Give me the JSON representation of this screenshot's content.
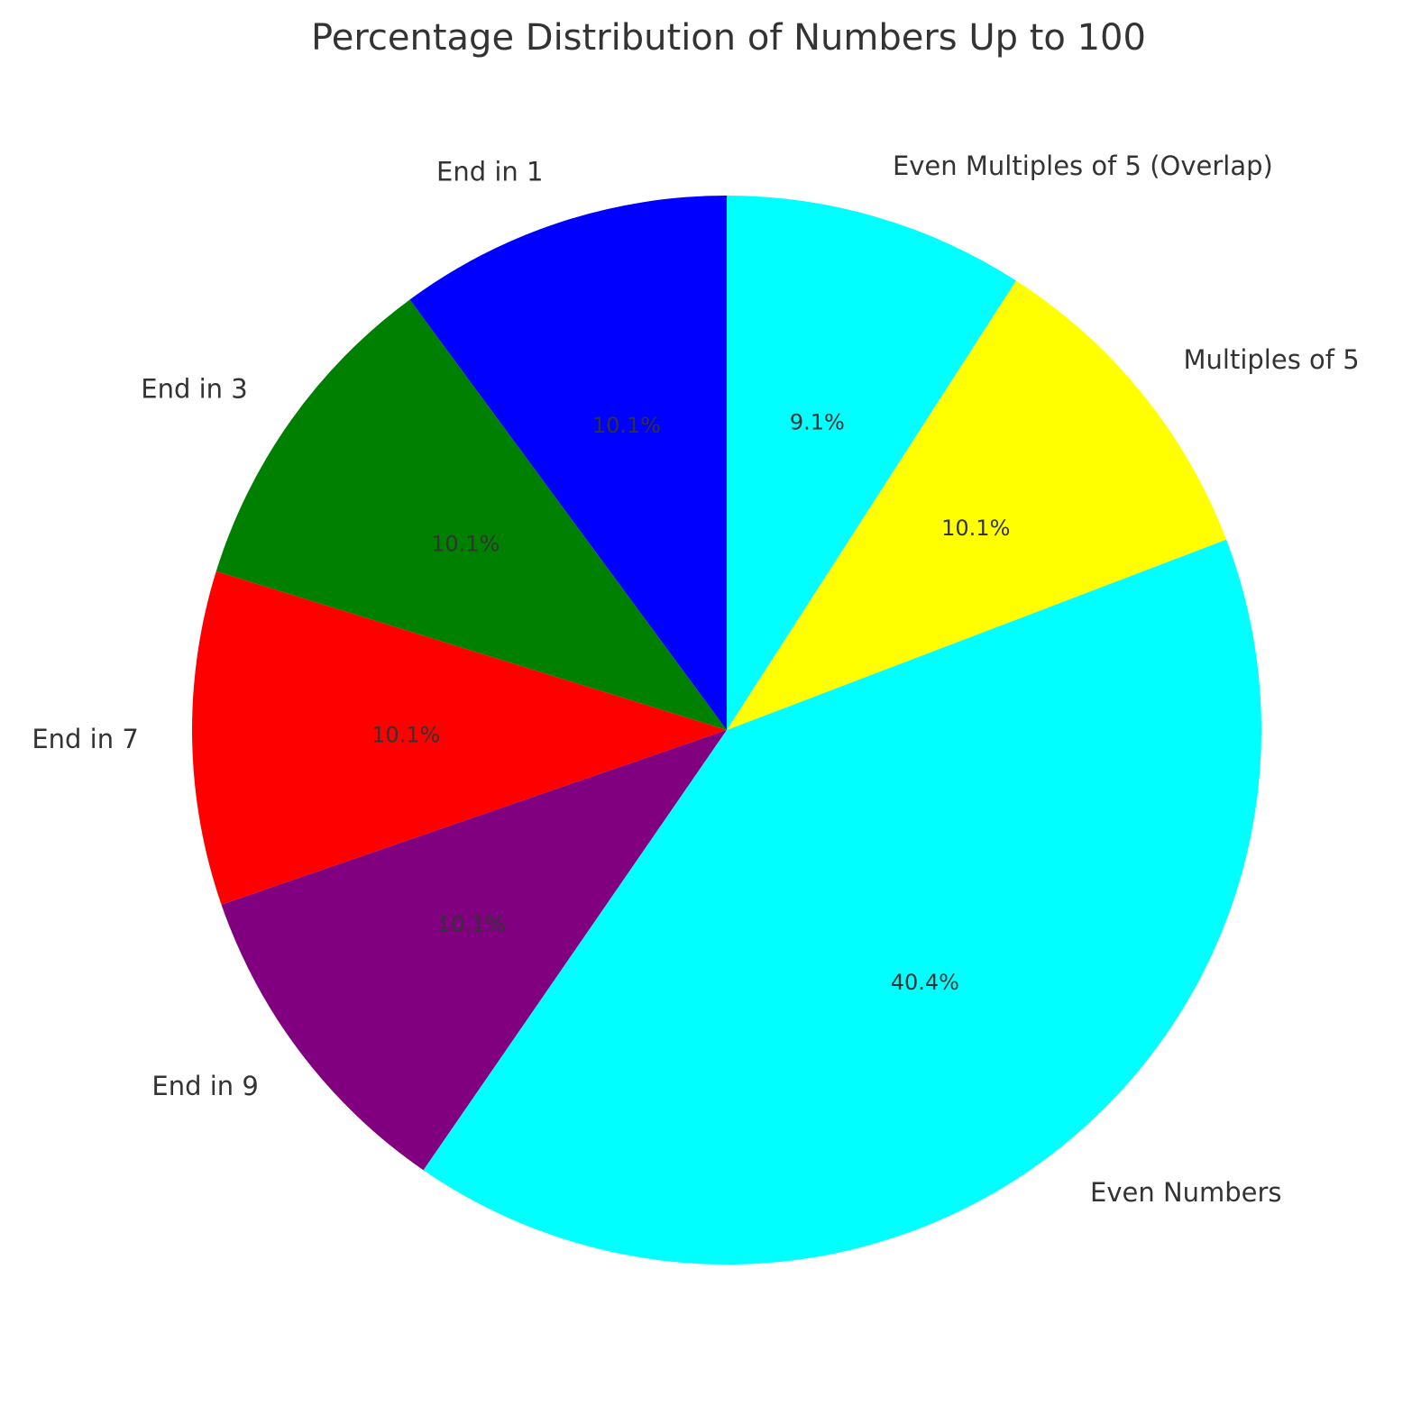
{
  "chart_data": {
    "type": "pie",
    "title": "Percentage Distribution of Numbers Up to 100",
    "slices": [
      {
        "label": "End in 1",
        "value": 10.1,
        "pct_label": "10.1%",
        "color": "#0000ff"
      },
      {
        "label": "End in 3",
        "value": 10.1,
        "pct_label": "10.1%",
        "color": "#008000"
      },
      {
        "label": "End in 7",
        "value": 10.1,
        "pct_label": "10.1%",
        "color": "#ff0000"
      },
      {
        "label": "End in 9",
        "value": 10.1,
        "pct_label": "10.1%",
        "color": "#800080"
      },
      {
        "label": "Even Numbers",
        "value": 40.4,
        "pct_label": "40.4%",
        "color": "#00ffff"
      },
      {
        "label": "Multiples of 5",
        "value": 10.1,
        "pct_label": "10.1%",
        "color": "#ffff00"
      },
      {
        "label": "Even Multiples of 5 (Overlap)",
        "value": 9.1,
        "pct_label": "9.1%",
        "color": "#00ffff"
      }
    ],
    "start_angle_deg": 90,
    "direction": "counterclockwise"
  }
}
